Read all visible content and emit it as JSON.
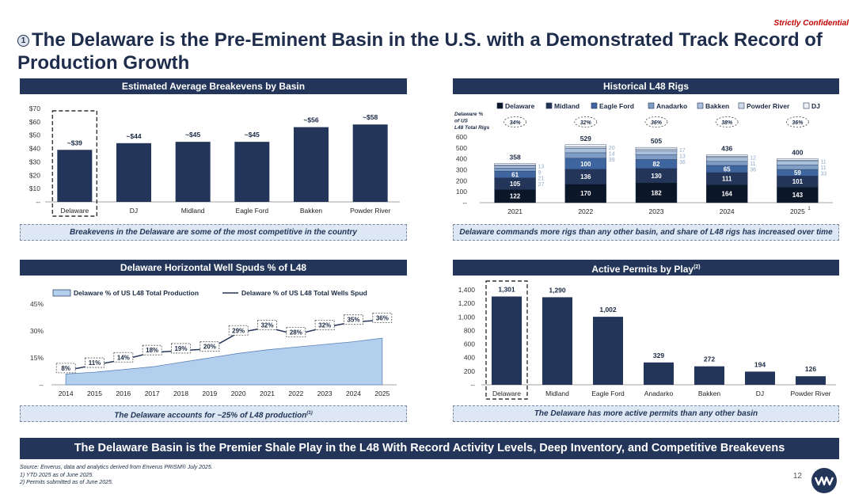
{
  "confidential": "Strictly Confidential",
  "title_num": "1",
  "title": "The Delaware is the Pre-Eminent Basin in the U.S. with a Demonstrated Track Record of Production Growth",
  "panels": {
    "p1_header": "Estimated Average Breakevens by Basin",
    "p1_note": "Breakevens in the Delaware are some of the most competitive in the country",
    "p2_header": "Historical L48 Rigs",
    "p2_note": "Delaware commands more rigs than any other basin, and share of L48 rigs has increased over time",
    "p3_header": "Delaware Horizontal Well Spuds % of L48",
    "p3_note": "The Delaware accounts for ~25% of L48 production",
    "p3_note_sup": "(1)",
    "p4_header": "Active Permits by Play",
    "p4_header_sup": "(2)",
    "p4_note": "The Delaware has more active permits than any other basin"
  },
  "banner": "The Delaware Basin is the Premier Shale Play in the L48 With Record Activity Levels, Deep Inventory, and Competitive Breakevens",
  "footnotes": {
    "source": "Source: Enverus, data and analytics derived from Enverus PRISM® July 2025.",
    "n1": "1)  YTD 2025 as of June 2025.",
    "n2": "2)  Permits submitted as of June 2025."
  },
  "page_number": "12",
  "colors": {
    "navy": "#233558",
    "light_blue": "#b3cfee",
    "note_bg": "#dde8f4"
  },
  "chart_data": [
    {
      "type": "bar",
      "title": "Estimated Average Breakevens by Basin",
      "categories": [
        "Delaware",
        "DJ",
        "Midland",
        "Eagle Ford",
        "Bakken",
        "Powder River"
      ],
      "values": [
        39,
        44,
        45,
        45,
        56,
        58
      ],
      "data_labels": [
        "~$39",
        "~$44",
        "~$45",
        "~$45",
        "~$56",
        "~$58"
      ],
      "y_ticks": [
        "$70",
        "$60",
        "$50",
        "$40",
        "$30",
        "$20",
        "$10",
        "--"
      ],
      "ylim": [
        0,
        70
      ],
      "highlight": "Delaware"
    },
    {
      "type": "bar",
      "stacked": true,
      "title": "Historical L48 Rigs",
      "categories": [
        "2021",
        "2022",
        "2023",
        "2024",
        "2025"
      ],
      "category_labels_sup": [
        "",
        "",
        "",
        "",
        "1"
      ],
      "legend": [
        "Delaware",
        "Midland",
        "Eagle Ford",
        "Anadarko",
        "Bakken",
        "Powder River",
        "DJ"
      ],
      "series_colors": [
        "#0c1629",
        "#233558",
        "#3f659e",
        "#7f9dc4",
        "#a9bfdb",
        "#cfdcec",
        "#eef2f8"
      ],
      "series": [
        {
          "name": "Delaware",
          "values": [
            122,
            170,
            182,
            164,
            143
          ]
        },
        {
          "name": "Midland",
          "values": [
            105,
            136,
            130,
            111,
            101
          ]
        },
        {
          "name": "Eagle Ford",
          "values": [
            61,
            100,
            82,
            65,
            59
          ]
        },
        {
          "name": "Anadarko",
          "values": [
            27,
            50,
            45,
            37,
            42
          ]
        },
        {
          "name": "Bakken",
          "values": [
            21,
            39,
            36,
            36,
            33
          ]
        },
        {
          "name": "Powder River",
          "values": [
            9,
            14,
            13,
            11,
            11
          ]
        },
        {
          "name": "DJ",
          "values": [
            13,
            20,
            17,
            12,
            11
          ]
        }
      ],
      "right_labels": [
        [
          "13",
          "9",
          "21",
          "27"
        ],
        [
          "20",
          "14",
          "39"
        ],
        [
          "17",
          "13",
          "36"
        ],
        [
          "12",
          "11",
          "36"
        ],
        [
          "11",
          "11",
          "33"
        ]
      ],
      "totals": [
        358,
        529,
        505,
        436,
        400
      ],
      "delaware_share_label": "Delaware % of US L48 Total Rigs",
      "delaware_share": [
        "34%",
        "32%",
        "36%",
        "38%",
        "36%"
      ],
      "y_ticks": [
        "600",
        "500",
        "400",
        "300",
        "200",
        "100",
        "--"
      ],
      "ylim": [
        0,
        600
      ]
    },
    {
      "type": "area",
      "title": "Delaware Horizontal Well Spuds % of L48",
      "x": [
        "2014",
        "2015",
        "2016",
        "2017",
        "2018",
        "2019",
        "2020",
        "2021",
        "2022",
        "2023",
        "2024",
        "2025"
      ],
      "series": [
        {
          "name": "Delaware % of US L48 Total Production",
          "type": "area",
          "values": [
            6,
            7,
            8.5,
            10,
            12.5,
            15,
            17.5,
            19.5,
            21,
            22.5,
            24,
            26
          ]
        },
        {
          "name": "Delaware % of US L48 Total Wells Spud",
          "type": "line",
          "values": [
            8,
            11,
            14,
            18,
            19,
            20,
            29,
            32,
            28,
            32,
            35,
            36
          ]
        }
      ],
      "data_labels": [
        "8%",
        "11%",
        "14%",
        "18%",
        "19%",
        "20%",
        "29%",
        "32%",
        "28%",
        "32%",
        "35%",
        "36%"
      ],
      "y_ticks": [
        "45%",
        "30%",
        "15%",
        "--"
      ],
      "ylim": [
        0,
        45
      ]
    },
    {
      "type": "bar",
      "title": "Active Permits by Play",
      "categories": [
        "Delaware",
        "Midland",
        "Eagle Ford",
        "Anadarko",
        "Bakken",
        "DJ",
        "Powder River"
      ],
      "values": [
        1301,
        1290,
        1002,
        329,
        272,
        194,
        126
      ],
      "data_labels": [
        "1,301",
        "1,290",
        "1,002",
        "329",
        "272",
        "194",
        "126"
      ],
      "y_ticks": [
        "1,400",
        "1,200",
        "1,000",
        "800",
        "600",
        "400",
        "200",
        "--"
      ],
      "ylim": [
        0,
        1400
      ],
      "highlight": "Delaware"
    }
  ]
}
